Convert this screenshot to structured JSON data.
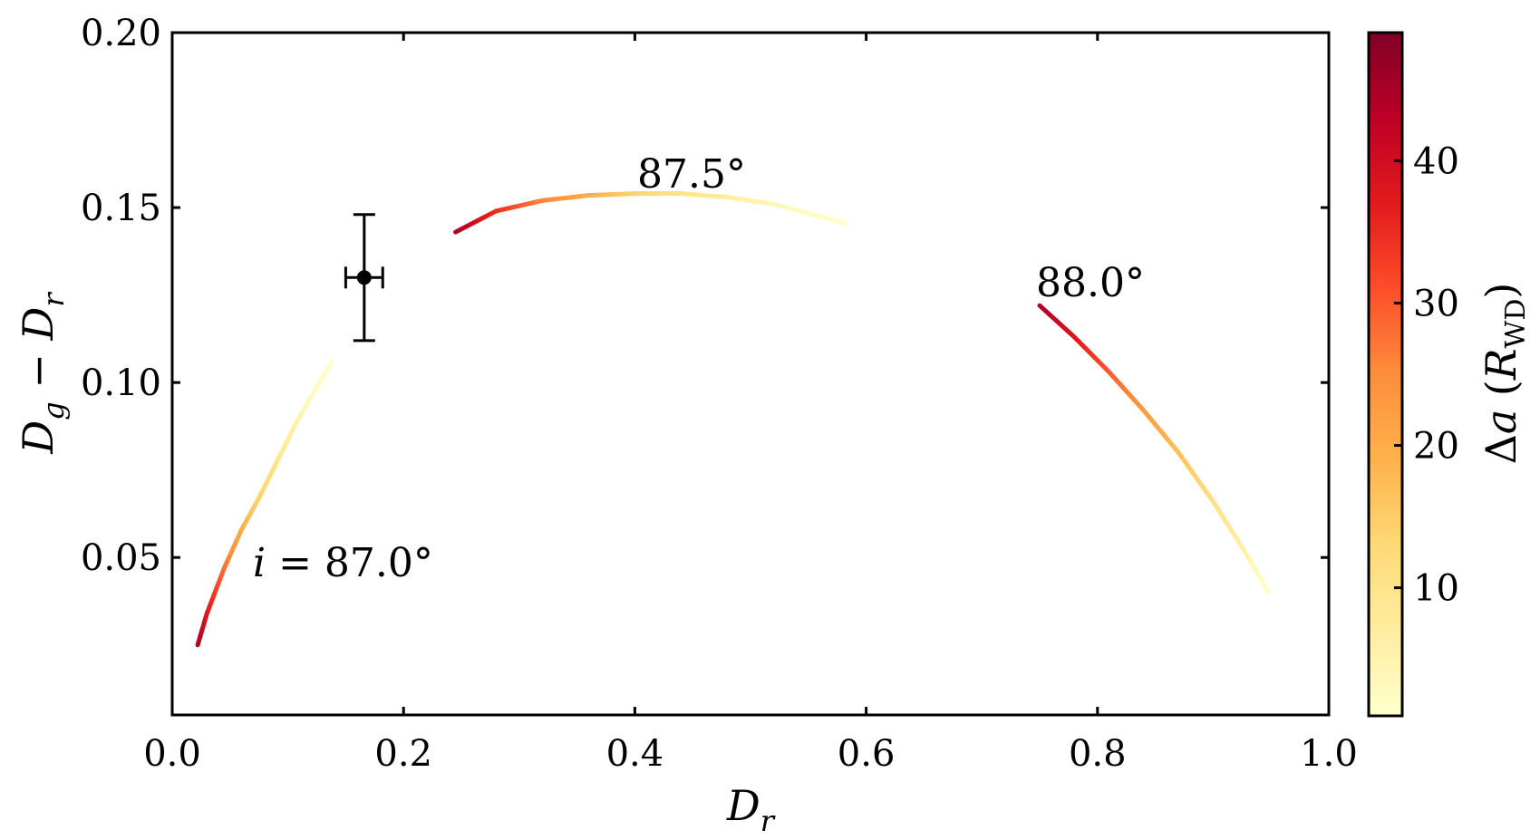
{
  "chart_data": {
    "type": "line",
    "xlabel": "D_r",
    "ylabel": "D_g − D_r",
    "xlim": [
      0.0,
      1.0
    ],
    "ylim": [
      0.005,
      0.2
    ],
    "x_ticks": [
      "0.0",
      "0.2",
      "0.4",
      "0.6",
      "0.8",
      "1.0"
    ],
    "y_ticks": [
      "0.05",
      "0.10",
      "0.15",
      "0.20"
    ],
    "grid": false,
    "colorbar": {
      "label": "Δa (R_WD)",
      "range": [
        1,
        49
      ],
      "ticks": [
        "10",
        "20",
        "30",
        "40"
      ],
      "colormap": [
        "#ffffcc",
        "#ffeda0",
        "#fed976",
        "#feb24c",
        "#fd8d3c",
        "#fc4e2a",
        "#e31a1c",
        "#bd0026",
        "#800026"
      ]
    },
    "series": [
      {
        "label": "i = 87.0°",
        "points": [
          [
            0.022,
            0.025,
            45
          ],
          [
            0.03,
            0.034,
            38
          ],
          [
            0.045,
            0.047,
            28
          ],
          [
            0.06,
            0.058,
            20
          ],
          [
            0.075,
            0.067,
            14
          ],
          [
            0.09,
            0.077,
            10
          ],
          [
            0.105,
            0.087,
            6
          ],
          [
            0.12,
            0.096,
            3
          ],
          [
            0.138,
            0.106,
            1
          ]
        ]
      },
      {
        "label": "87.5°",
        "points": [
          [
            0.245,
            0.143,
            45
          ],
          [
            0.28,
            0.149,
            35
          ],
          [
            0.32,
            0.152,
            26
          ],
          [
            0.36,
            0.1535,
            20
          ],
          [
            0.4,
            0.154,
            14
          ],
          [
            0.44,
            0.154,
            10
          ],
          [
            0.48,
            0.153,
            7
          ],
          [
            0.52,
            0.151,
            4
          ],
          [
            0.555,
            0.148,
            2
          ],
          [
            0.582,
            0.1455,
            1
          ]
        ]
      },
      {
        "label": "88.0°",
        "points": [
          [
            0.75,
            0.122,
            45
          ],
          [
            0.78,
            0.113,
            38
          ],
          [
            0.81,
            0.103,
            30
          ],
          [
            0.84,
            0.092,
            23
          ],
          [
            0.87,
            0.08,
            17
          ],
          [
            0.9,
            0.066,
            11
          ],
          [
            0.925,
            0.053,
            6
          ],
          [
            0.948,
            0.04,
            1
          ]
        ]
      }
    ],
    "observation": {
      "x": 0.166,
      "y": 0.13,
      "xerr": 0.016,
      "yerr": 0.018
    }
  },
  "annotations": {
    "i870": "i = 87.0°",
    "i875": "87.5°",
    "i880": "88.0°"
  }
}
